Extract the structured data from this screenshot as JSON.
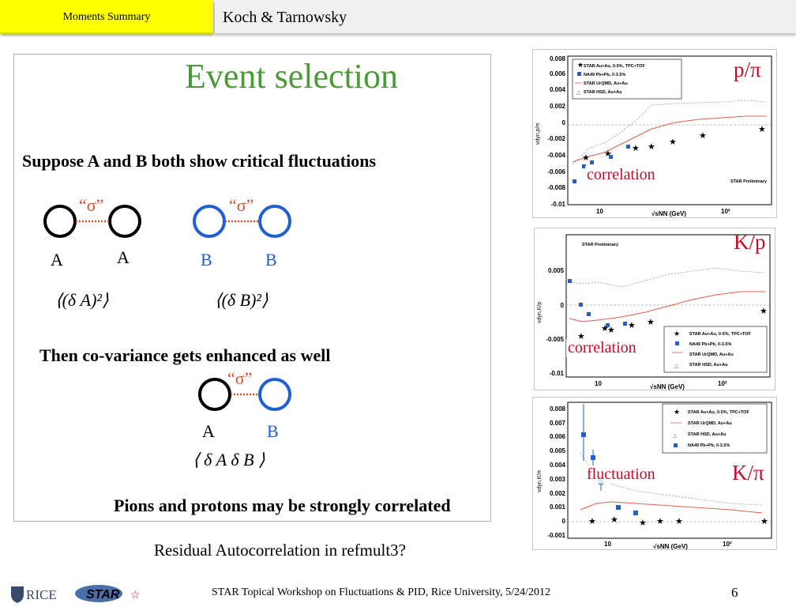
{
  "header": {
    "tab_label": "Moments Summary",
    "title": "Koch & Tarnowsky"
  },
  "slide_panel": {
    "title": "Event selection",
    "line1": "Suppose A and B both show critical fluctuations",
    "line2": "Then co-variance gets enhanced as well",
    "line3": "Pions and protons may be strongly correlated",
    "sigma": "“σ”",
    "label_a": "A",
    "label_b": "B",
    "formula_a": "⟨(δ A)²⟩",
    "formula_b": "⟨(δ B)²⟩",
    "formula_ab": "⟨ δ A δ B ⟩"
  },
  "residual_text": "Residual Autocorrelation in refmult3?",
  "plots": {
    "p_pi": {
      "big_label": "p/π",
      "note": "correlation",
      "y_ticks": [
        "0.008",
        "0.006",
        "0.004",
        "0.002",
        "0",
        "-0.002",
        "-0.004",
        "-0.006",
        "-0.008",
        "-0.01"
      ],
      "x_ticks": [
        "10",
        "10²"
      ],
      "x_label": "√sNN (GeV)",
      "y_label": "νdyn,p/π",
      "preliminary": "STAR Preliminary",
      "legend": [
        "STAR Au+Au, 0-5%, TPC+TOF",
        "NA49 Pb+Pb, 0-3.5%",
        "STAR UrQMD, Au+Au",
        "STAR HSD, Au+Au"
      ]
    },
    "k_p": {
      "big_label": "K/p",
      "note": "correlation",
      "y_ticks": [
        "0.005",
        "0",
        "-0.005",
        "-0.01"
      ],
      "x_ticks": [
        "10",
        "10²"
      ],
      "x_label": "√sNN (GeV)",
      "y_label": "νdyn,K/p",
      "preliminary": "STAR Preliminary",
      "legend": [
        "STAR Au+Au, 0-5%, TPC+TOF",
        "NA49 Pb+Pb, 0-3.5%",
        "STAR UrQMD, Au+Au",
        "STAR HSD, Au+Au"
      ]
    },
    "k_pi": {
      "big_label": "K/π",
      "note": "fluctuation",
      "y_ticks": [
        "0.008",
        "0.007",
        "0.006",
        "0.005",
        "0.004",
        "0.003",
        "0.002",
        "0.001",
        "0",
        "-0.001"
      ],
      "x_ticks": [
        "10",
        "10²"
      ],
      "x_label": "√sNN (GeV)",
      "y_label": "νdyn,K/π",
      "legend": [
        "STAR Au+Au, 0-5%, TPC+TOF",
        "STAR UrQMD, Au+Au",
        "STAR HSD, Au+Au",
        "NA49 Pb+Pb, 0-3.5%"
      ]
    }
  },
  "colors": {
    "header_tab": "#ffff00",
    "title_green": "#4a9a3a",
    "accent_red": "#c0102a",
    "circle_blue": "#1f5fcf",
    "sigma_red": "#d05030"
  },
  "footer": {
    "rice_logo": "RICE",
    "star_logo": "STAR",
    "text": "STAR Topical Workshop on Fluctuations & PID, Rice University, 5/24/2012",
    "page_number": "6"
  }
}
